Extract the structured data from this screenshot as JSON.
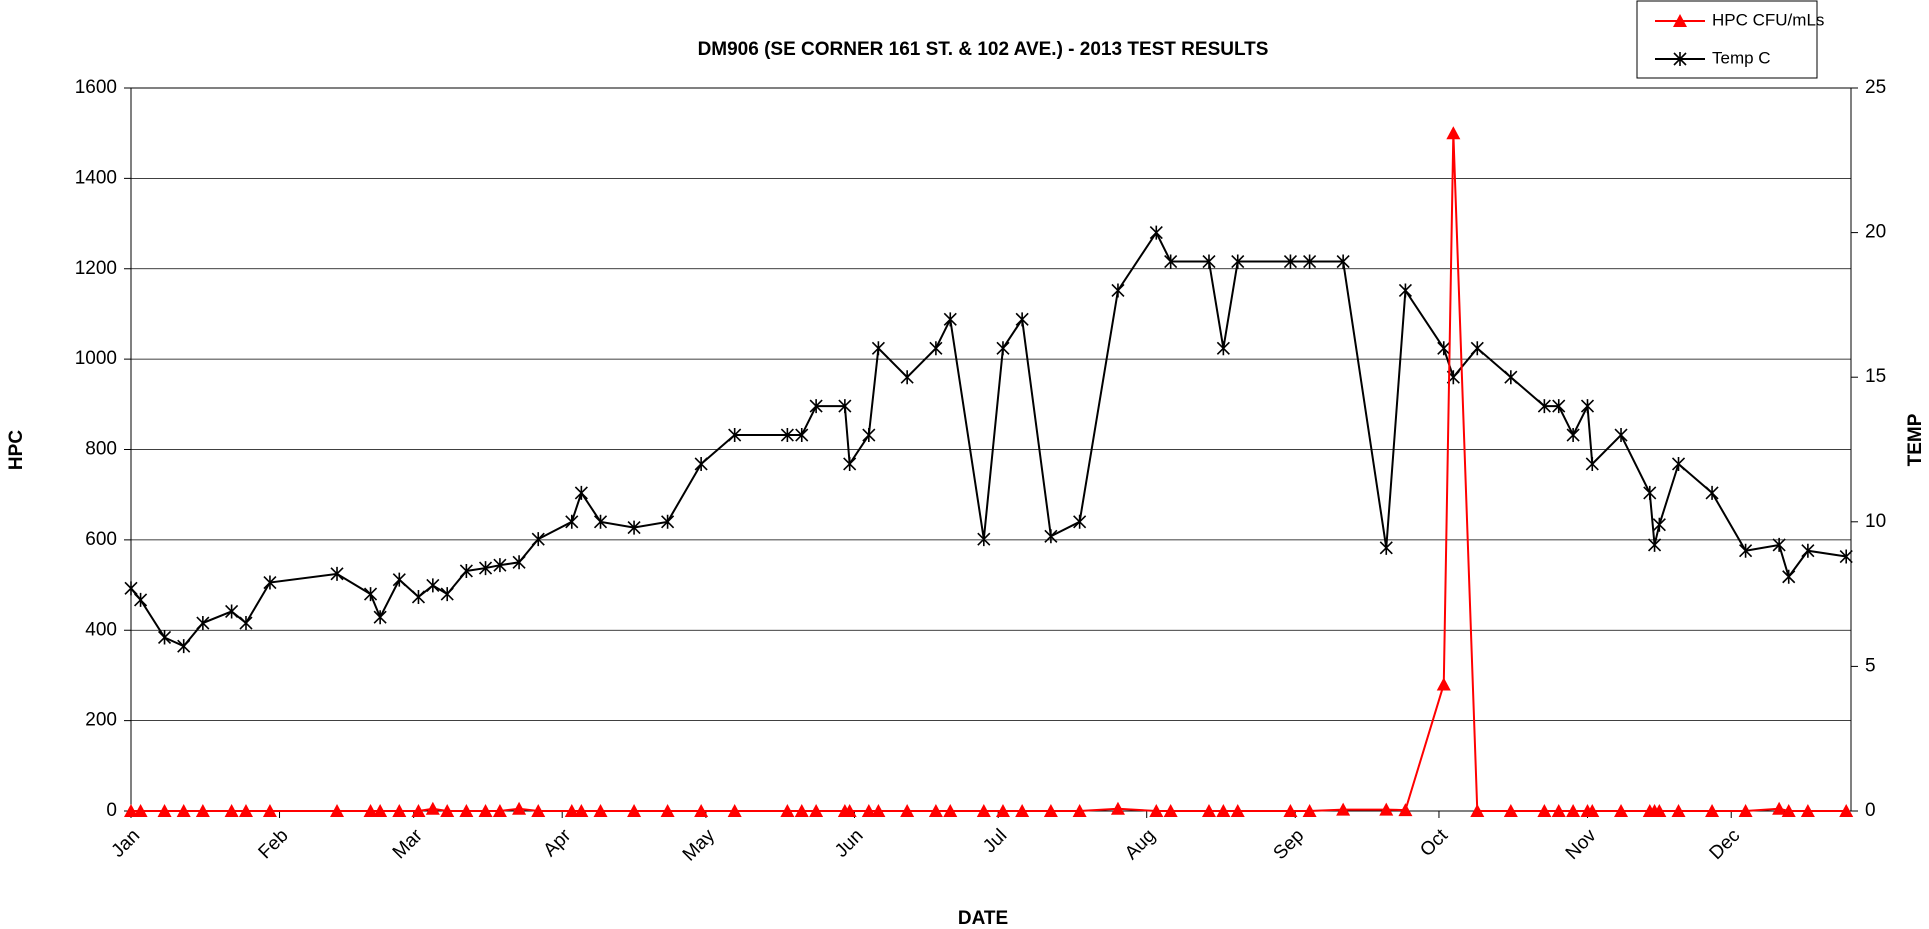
{
  "chart_data": {
    "type": "line",
    "title": "DM906 (SE CORNER 161 ST. & 102 AVE.) - 2013 TEST RESULTS",
    "x_label": "DATE",
    "y_label": "HPC",
    "y2_label": "TEMP",
    "x": [
      0,
      2,
      7,
      11,
      15,
      21,
      24,
      29,
      43,
      50,
      52,
      56,
      60,
      63,
      66,
      70,
      74,
      77,
      81,
      85,
      92,
      94,
      98,
      105,
      112,
      119,
      126,
      137,
      140,
      143,
      149,
      150,
      154,
      156,
      162,
      168,
      171,
      178,
      182,
      186,
      192,
      198,
      206,
      214,
      217,
      225,
      228,
      231,
      242,
      246,
      253,
      262,
      266,
      274,
      276,
      281,
      288,
      295,
      298,
      301,
      304,
      305,
      311,
      317,
      318,
      319,
      323,
      330,
      337,
      344,
      346,
      350,
      358
    ],
    "series": [
      {
        "name": "HPC CFU/mLs",
        "color": "#ff0000",
        "marker": "triangle",
        "axis": "y",
        "values": [
          0,
          0,
          0,
          0,
          0,
          0,
          0,
          0,
          0,
          0,
          0,
          0,
          0,
          5,
          0,
          0,
          0,
          0,
          5,
          0,
          0,
          0,
          0,
          0,
          0,
          0,
          0,
          0,
          0,
          0,
          0,
          0,
          0,
          0,
          0,
          0,
          0,
          0,
          0,
          0,
          0,
          0,
          5,
          0,
          0,
          0,
          0,
          0,
          0,
          0,
          3,
          3,
          2,
          280,
          1500,
          0,
          0,
          0,
          0,
          0,
          0,
          0,
          0,
          0,
          0,
          0,
          0,
          0,
          0,
          5,
          0,
          0,
          0
        ]
      },
      {
        "name": "Temp C",
        "color": "#000000",
        "marker": "star",
        "axis": "y2",
        "values": [
          7.7,
          7.3,
          6.0,
          5.7,
          6.5,
          6.9,
          6.5,
          7.9,
          8.2,
          7.5,
          6.7,
          8.0,
          7.4,
          7.8,
          7.5,
          8.3,
          8.4,
          8.5,
          8.6,
          9.4,
          10,
          11,
          10,
          9.8,
          10,
          12,
          13,
          13,
          13,
          14,
          14,
          12,
          13,
          16,
          15,
          16,
          17,
          9.4,
          16,
          17,
          9.5,
          10,
          18,
          20,
          19,
          19,
          16,
          19,
          19,
          19,
          19,
          9.1,
          18,
          16,
          15,
          16,
          15,
          14,
          14,
          13,
          14,
          12,
          13,
          11,
          9.2,
          9.9,
          12,
          11,
          9,
          9.2,
          8.1,
          9,
          8.8
        ]
      }
    ],
    "xlim": [
      0,
      359
    ],
    "xticks": [
      {
        "value": 0,
        "label": "Jan"
      },
      {
        "value": 31,
        "label": "Feb"
      },
      {
        "value": 59,
        "label": "Mar"
      },
      {
        "value": 90,
        "label": "Apr"
      },
      {
        "value": 120,
        "label": "May"
      },
      {
        "value": 151,
        "label": "Jun"
      },
      {
        "value": 181,
        "label": "Jul"
      },
      {
        "value": 212,
        "label": "Aug"
      },
      {
        "value": 243,
        "label": "Sep"
      },
      {
        "value": 273,
        "label": "Oct"
      },
      {
        "value": 304,
        "label": "Nov"
      },
      {
        "value": 334,
        "label": "Dec"
      }
    ],
    "ylim": [
      0,
      1600
    ],
    "yticks": [
      0,
      200,
      400,
      600,
      800,
      1000,
      1200,
      1400,
      1600
    ],
    "y2lim": [
      0,
      25
    ],
    "y2ticks": [
      0,
      5,
      10,
      15,
      20,
      25
    ],
    "grid": true,
    "legend": "top-right"
  }
}
